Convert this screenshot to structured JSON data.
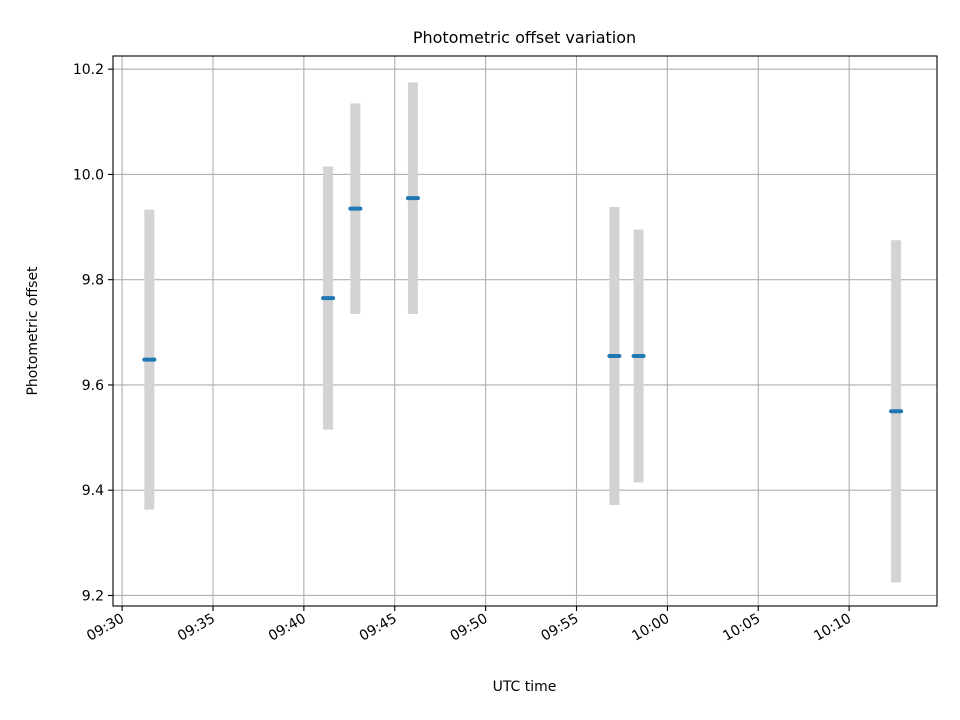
{
  "chart_data": {
    "type": "errorbar",
    "title": "Photometric offset variation",
    "xlabel": "UTC time",
    "ylabel": "Photometric offset",
    "grid": true,
    "xlim": [
      "09:29:30",
      "10:14:50"
    ],
    "ylim": [
      9.18,
      10.225
    ],
    "x_ticks": [
      "09:30",
      "09:35",
      "09:40",
      "09:45",
      "09:50",
      "09:55",
      "10:00",
      "10:05",
      "10:10"
    ],
    "y_ticks": [
      9.2,
      9.4,
      9.6,
      9.8,
      10.0,
      10.2
    ],
    "series": [
      {
        "marker_color": "#1f77b4",
        "errorbar_color": "#d3d3d3",
        "points": [
          {
            "x": "09:31:30",
            "y": 9.648,
            "err": 0.285
          },
          {
            "x": "09:41:20",
            "y": 9.765,
            "err": 0.25
          },
          {
            "x": "09:42:50",
            "y": 9.935,
            "err": 0.2
          },
          {
            "x": "09:46:00",
            "y": 9.955,
            "err": 0.22
          },
          {
            "x": "09:57:05",
            "y": 9.655,
            "err": 0.283
          },
          {
            "x": "09:58:25",
            "y": 9.655,
            "err": 0.24
          },
          {
            "x": "10:12:35",
            "y": 9.55,
            "err": 0.325
          }
        ]
      }
    ]
  }
}
